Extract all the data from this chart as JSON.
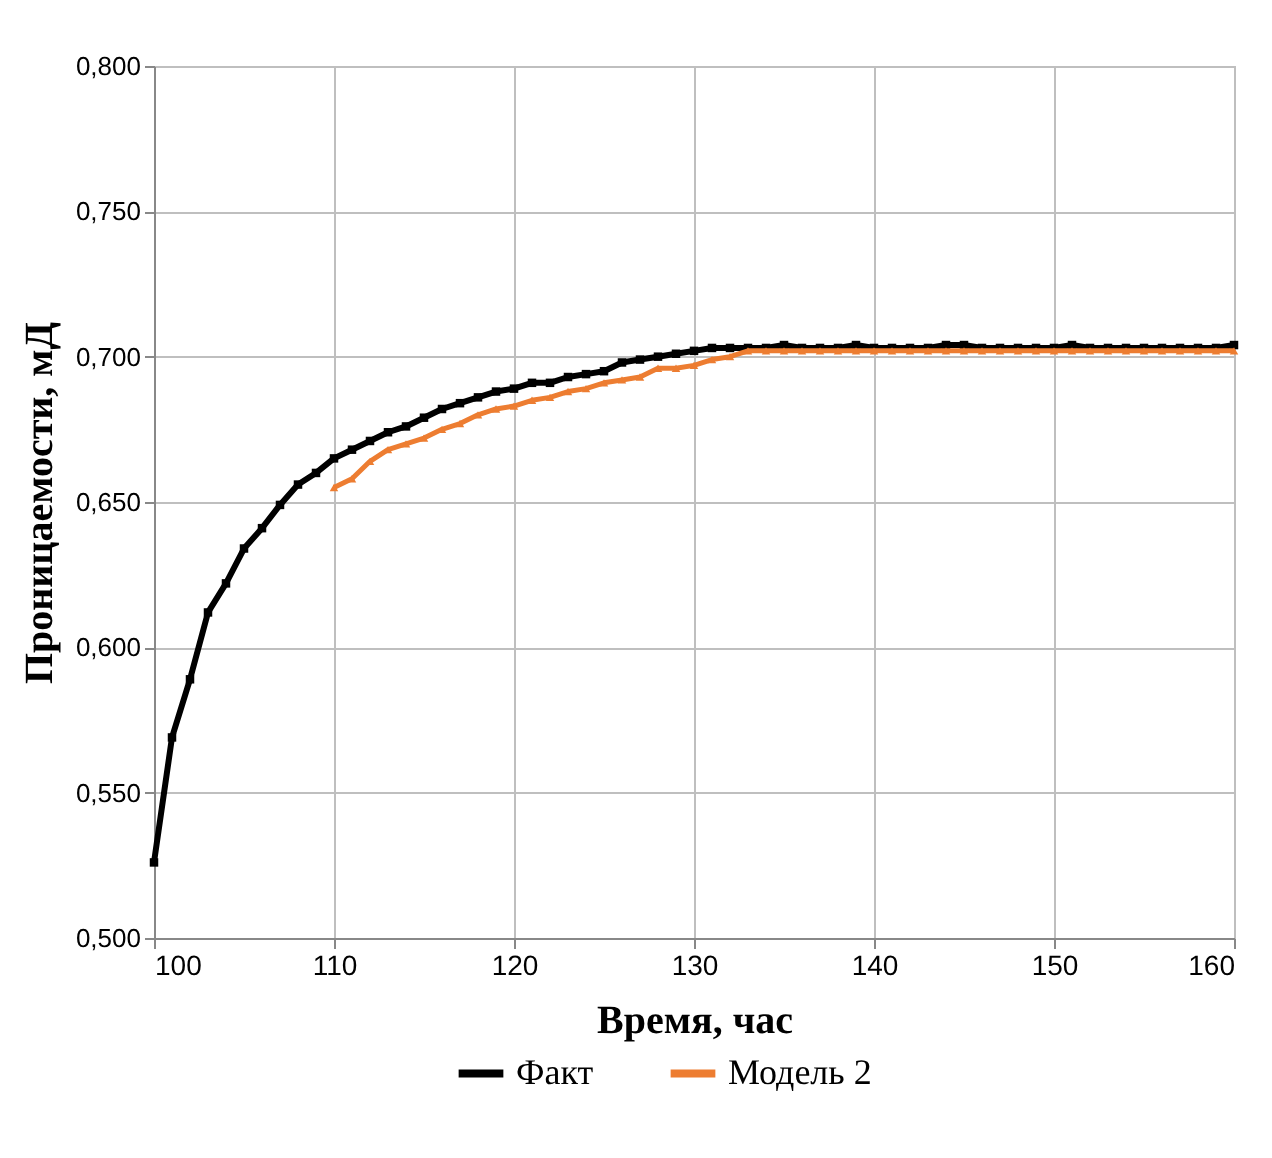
{
  "chart_data": {
    "type": "line",
    "xlabel": "Время, час",
    "ylabel": "Проницаемости, мД",
    "x": [
      100,
      101,
      102,
      103,
      104,
      105,
      106,
      107,
      108,
      109,
      110,
      111,
      112,
      113,
      114,
      115,
      116,
      117,
      118,
      119,
      120,
      121,
      122,
      123,
      124,
      125,
      126,
      127,
      128,
      129,
      130,
      131,
      132,
      133,
      134,
      135,
      136,
      137,
      138,
      139,
      140,
      141,
      142,
      143,
      144,
      145,
      146,
      147,
      148,
      149,
      150,
      151,
      152,
      153,
      154,
      155,
      156,
      157,
      158,
      159,
      160
    ],
    "series": [
      {
        "name": "Факт",
        "color": "#000000",
        "marker": "square",
        "values": [
          0.526,
          0.569,
          0.589,
          0.612,
          0.622,
          0.634,
          0.641,
          0.649,
          0.656,
          0.66,
          0.665,
          0.668,
          0.671,
          0.674,
          0.676,
          0.679,
          0.682,
          0.684,
          0.686,
          0.688,
          0.689,
          0.691,
          0.691,
          0.693,
          0.694,
          0.695,
          0.698,
          0.699,
          0.7,
          0.701,
          0.702,
          0.703,
          0.703,
          0.703,
          0.703,
          0.704,
          0.703,
          0.703,
          0.703,
          0.704,
          0.703,
          0.703,
          0.703,
          0.703,
          0.704,
          0.704,
          0.703,
          0.703,
          0.703,
          0.703,
          0.703,
          0.704,
          0.703,
          0.703,
          0.703,
          0.703,
          0.703,
          0.703,
          0.703,
          0.703,
          0.704
        ]
      },
      {
        "name": "Модель 2",
        "color": "#ed7d31",
        "marker": "triangle",
        "values": [
          null,
          null,
          null,
          null,
          null,
          null,
          null,
          null,
          null,
          null,
          0.655,
          0.658,
          0.664,
          0.668,
          0.67,
          0.672,
          0.675,
          0.677,
          0.68,
          0.682,
          0.683,
          0.685,
          0.686,
          0.688,
          0.689,
          0.691,
          0.692,
          0.693,
          0.696,
          0.696,
          0.697,
          0.699,
          0.7,
          0.702,
          0.702,
          0.702,
          0.702,
          0.702,
          0.702,
          0.702,
          0.702,
          0.702,
          0.702,
          0.702,
          0.702,
          0.702,
          0.702,
          0.702,
          0.702,
          0.702,
          0.702,
          0.702,
          0.702,
          0.702,
          0.702,
          0.702,
          0.702,
          0.702,
          0.702,
          0.702,
          0.702
        ]
      }
    ],
    "xlim": [
      100,
      160
    ],
    "xticks": [
      100,
      110,
      120,
      130,
      140,
      150,
      160
    ],
    "ylim": [
      0.5,
      0.8
    ],
    "yticks": [
      {
        "value": 0.5,
        "label": "0,500"
      },
      {
        "value": 0.55,
        "label": "0,550"
      },
      {
        "value": 0.6,
        "label": "0,600"
      },
      {
        "value": 0.65,
        "label": "0,650"
      },
      {
        "value": 0.7,
        "label": "0,700"
      },
      {
        "value": 0.75,
        "label": "0,750"
      },
      {
        "value": 0.8,
        "label": "0,800"
      }
    ],
    "grid": true,
    "legend": "bottom",
    "line_style": "solid"
  }
}
